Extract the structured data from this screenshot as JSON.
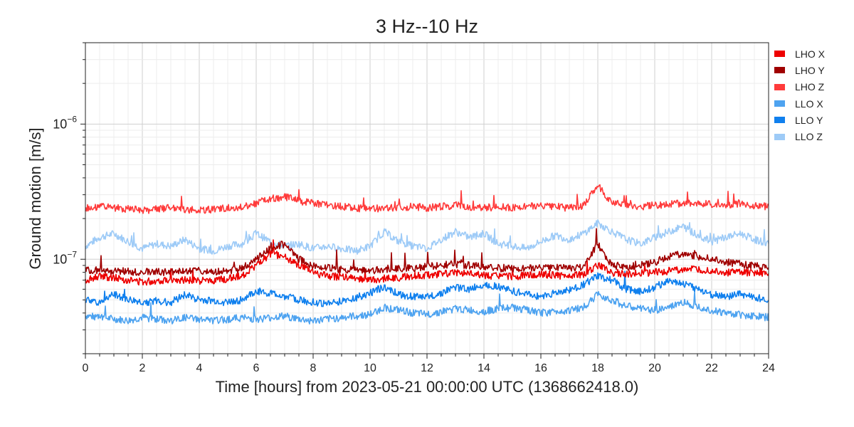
{
  "chart_data": {
    "type": "line",
    "title": "3 Hz--10 Hz",
    "xlabel": "Time [hours] from 2023-05-21 00:00:00 UTC (1368662418.0)",
    "ylabel": "Ground motion [m/s]",
    "xlim": [
      0,
      24
    ],
    "ylim": [
      2e-08,
      4e-06
    ],
    "yscale": "log",
    "grid": true,
    "legend_position": "right",
    "x_ticks": [
      0,
      2,
      4,
      6,
      8,
      10,
      12,
      14,
      16,
      18,
      20,
      22,
      24
    ],
    "x_tick_labels": [
      "0",
      "2",
      "4",
      "6",
      "8",
      "10",
      "12",
      "14",
      "16",
      "18",
      "20",
      "22",
      "24"
    ],
    "y_ticks": [
      {
        "mantissa": "10",
        "exponent": "−7",
        "value": 1e-07
      },
      {
        "mantissa": "10",
        "exponent": "−6",
        "value": 1e-06
      }
    ],
    "x": [
      0,
      0.5,
      1,
      1.5,
      2,
      2.5,
      3,
      3.5,
      4,
      4.5,
      5,
      5.5,
      6,
      6.5,
      7,
      7.5,
      8,
      8.5,
      9,
      9.5,
      10,
      10.5,
      11,
      11.5,
      12,
      12.5,
      13,
      13.5,
      14,
      14.5,
      15,
      15.5,
      16,
      16.5,
      17,
      17.5,
      18,
      18.5,
      19,
      19.5,
      20,
      20.5,
      21,
      21.5,
      22,
      22.5,
      23,
      23.5,
      24
    ],
    "series": [
      {
        "name": "LHO X",
        "color": "#ee0000",
        "values": [
          7e-08,
          7.5e-08,
          7.3e-08,
          7e-08,
          6.8e-08,
          6.9e-08,
          7.1e-08,
          7e-08,
          6.9e-08,
          7e-08,
          7.2e-08,
          7.5e-08,
          9e-08,
          1.1e-07,
          1.05e-07,
          9e-08,
          8e-08,
          7.5e-08,
          7.4e-08,
          7.2e-08,
          7e-08,
          7.2e-08,
          7.3e-08,
          7.5e-08,
          7.6e-08,
          7.8e-08,
          8e-08,
          7.8e-08,
          7.6e-08,
          7.5e-08,
          7.4e-08,
          7.6e-08,
          7.8e-08,
          7.6e-08,
          7.5e-08,
          7.8e-08,
          9e-08,
          8e-08,
          7.8e-08,
          7.9e-08,
          8e-08,
          8.2e-08,
          8.5e-08,
          8.3e-08,
          8.2e-08,
          8e-08,
          8e-08,
          7.9e-08,
          8e-08
        ]
      },
      {
        "name": "LHO Y",
        "color": "#a00000",
        "values": [
          8.2e-08,
          8.3e-08,
          8.2e-08,
          8.1e-08,
          8e-08,
          8.1e-08,
          8e-08,
          8.1e-08,
          8.2e-08,
          8e-08,
          8.2e-08,
          8.5e-08,
          1e-07,
          1.2e-07,
          1.3e-07,
          1e-07,
          9e-08,
          8.6e-08,
          8.4e-08,
          8.3e-08,
          8.2e-08,
          8.4e-08,
          8.5e-08,
          8.6e-08,
          8.8e-08,
          9e-08,
          9.2e-08,
          9e-08,
          8.8e-08,
          8.6e-08,
          8.5e-08,
          8.6e-08,
          8.8e-08,
          8.7e-08,
          8.6e-08,
          8.8e-08,
          1.3e-07,
          9e-08,
          8.8e-08,
          9e-08,
          9.5e-08,
          1.05e-07,
          1.1e-07,
          1.05e-07,
          1e-07,
          9.5e-08,
          9.2e-08,
          9e-08,
          8.8e-08
        ]
      },
      {
        "name": "LHO Z",
        "color": "#ff3b3b",
        "values": [
          2.4e-07,
          2.45e-07,
          2.4e-07,
          2.35e-07,
          2.3e-07,
          2.35e-07,
          2.4e-07,
          2.35e-07,
          2.3e-07,
          2.35e-07,
          2.4e-07,
          2.45e-07,
          2.6e-07,
          2.8e-07,
          2.9e-07,
          2.7e-07,
          2.6e-07,
          2.5e-07,
          2.45e-07,
          2.4e-07,
          2.35e-07,
          2.4e-07,
          2.4e-07,
          2.45e-07,
          2.4e-07,
          2.45e-07,
          2.5e-07,
          2.45e-07,
          2.4e-07,
          2.45e-07,
          2.4e-07,
          2.45e-07,
          2.5e-07,
          2.45e-07,
          2.4e-07,
          2.5e-07,
          3.5e-07,
          2.6e-07,
          2.5e-07,
          2.45e-07,
          2.5e-07,
          2.55e-07,
          2.6e-07,
          2.6e-07,
          2.55e-07,
          2.5e-07,
          2.6e-07,
          2.5e-07,
          2.45e-07
        ]
      },
      {
        "name": "LLO X",
        "color": "#4ea3f0",
        "values": [
          3.8e-08,
          3.7e-08,
          3.6e-08,
          3.5e-08,
          3.7e-08,
          3.6e-08,
          3.5e-08,
          3.7e-08,
          3.6e-08,
          3.5e-08,
          3.6e-08,
          3.7e-08,
          3.6e-08,
          3.7e-08,
          3.8e-08,
          3.6e-08,
          3.5e-08,
          3.6e-08,
          3.7e-08,
          3.8e-08,
          3.9e-08,
          4.4e-08,
          4.2e-08,
          4e-08,
          3.9e-08,
          4.1e-08,
          4.3e-08,
          4.2e-08,
          4.1e-08,
          4.3e-08,
          4.4e-08,
          4.2e-08,
          4e-08,
          4.1e-08,
          4.2e-08,
          4.4e-08,
          5.5e-08,
          5e-08,
          4.5e-08,
          4.3e-08,
          4.2e-08,
          4.4e-08,
          4.8e-08,
          4.5e-08,
          4.2e-08,
          4e-08,
          3.9e-08,
          3.8e-08,
          3.7e-08
        ]
      },
      {
        "name": "LLO Y",
        "color": "#1080ee",
        "values": [
          5e-08,
          4.8e-08,
          5.5e-08,
          5e-08,
          4.8e-08,
          4.9e-08,
          4.8e-08,
          5.5e-08,
          5e-08,
          4.9e-08,
          4.8e-08,
          5e-08,
          5.8e-08,
          5.6e-08,
          5.3e-08,
          5e-08,
          4.8e-08,
          4.7e-08,
          4.9e-08,
          5.2e-08,
          5.6e-08,
          6.3e-08,
          5.5e-08,
          5.3e-08,
          5.2e-08,
          5.6e-08,
          6.2e-08,
          6e-08,
          6.5e-08,
          6.3e-08,
          5.8e-08,
          5.5e-08,
          5.3e-08,
          5.6e-08,
          5.9e-08,
          6.5e-08,
          7.5e-08,
          7e-08,
          6e-08,
          5.8e-08,
          6.2e-08,
          7e-08,
          6.6e-08,
          6e-08,
          5.5e-08,
          5.3e-08,
          5.5e-08,
          5.2e-08,
          5.1e-08
        ]
      },
      {
        "name": "LLO Z",
        "color": "#9ecbf7",
        "values": [
          1.25e-07,
          1.45e-07,
          1.55e-07,
          1.35e-07,
          1.2e-07,
          1.3e-07,
          1.25e-07,
          1.4e-07,
          1.2e-07,
          1.15e-07,
          1.25e-07,
          1.3e-07,
          1.55e-07,
          1.35e-07,
          1.25e-07,
          1.3e-07,
          1.2e-07,
          1.25e-07,
          1.2e-07,
          1.15e-07,
          1.25e-07,
          1.6e-07,
          1.35e-07,
          1.25e-07,
          1.2e-07,
          1.4e-07,
          1.6e-07,
          1.45e-07,
          1.55e-07,
          1.3e-07,
          1.25e-07,
          1.2e-07,
          1.35e-07,
          1.5e-07,
          1.4e-07,
          1.55e-07,
          1.85e-07,
          1.6e-07,
          1.4e-07,
          1.3e-07,
          1.45e-07,
          1.6e-07,
          1.75e-07,
          1.5e-07,
          1.35e-07,
          1.45e-07,
          1.55e-07,
          1.4e-07,
          1.3e-07
        ]
      }
    ]
  }
}
